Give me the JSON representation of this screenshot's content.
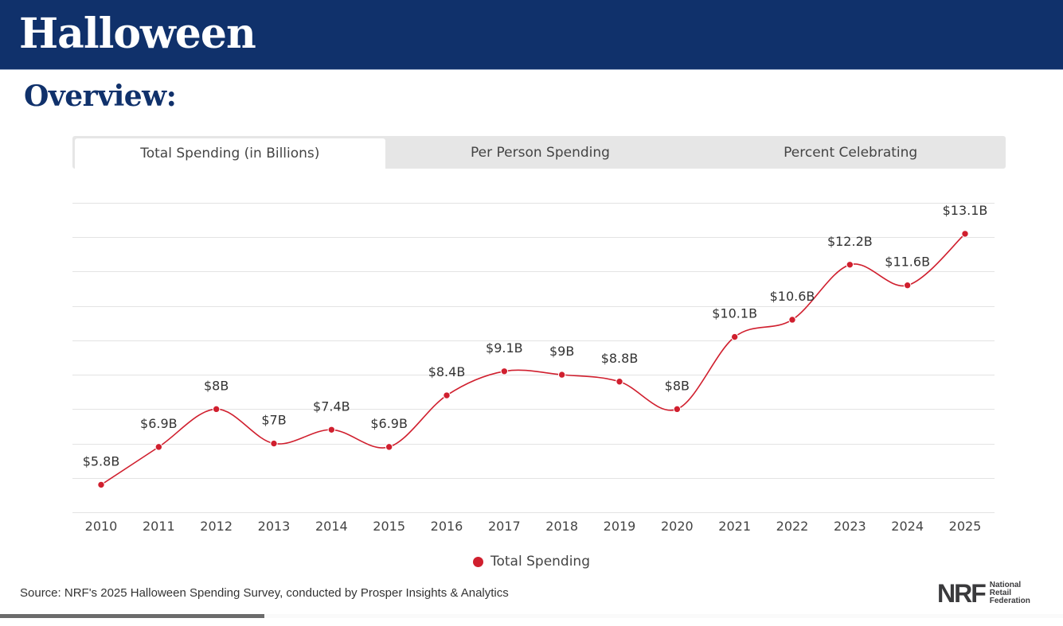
{
  "header": {
    "title": "Halloween"
  },
  "subtitle": "Overview:",
  "tabs": [
    {
      "label": "Total Spending (in Billions)",
      "active": true
    },
    {
      "label": "Per Person Spending",
      "active": false
    },
    {
      "label": "Percent Celebrating",
      "active": false
    }
  ],
  "colors": {
    "brand": "#10316b",
    "series": "#d01f2e",
    "grid": "#e3e3e3"
  },
  "chart_data": {
    "type": "line",
    "title": "Total Spending (in Billions)",
    "xlabel": "",
    "ylabel": "",
    "categories": [
      "2010",
      "2011",
      "2012",
      "2013",
      "2014",
      "2015",
      "2016",
      "2017",
      "2018",
      "2019",
      "2020",
      "2021",
      "2022",
      "2023",
      "2024",
      "2025"
    ],
    "series": [
      {
        "name": "Total Spending",
        "values": [
          5.8,
          6.9,
          8.0,
          7.0,
          7.4,
          6.9,
          8.4,
          9.1,
          9.0,
          8.8,
          8.0,
          10.1,
          10.6,
          12.2,
          11.6,
          13.1
        ],
        "labels": [
          "$5.8B",
          "$6.9B",
          "$8B",
          "$7B",
          "$7.4B",
          "$6.9B",
          "$8.4B",
          "$9.1B",
          "$9B",
          "$8.8B",
          "$8B",
          "$10.1B",
          "$10.6B",
          "$12.2B",
          "$11.6B",
          "$13.1B"
        ]
      }
    ],
    "ylim": [
      5,
      14
    ],
    "ytick_step": 1,
    "ytick_labels_visible": false,
    "grid": true,
    "smooth": true,
    "legend": "bottom-center"
  },
  "legend": {
    "label": "Total Spending"
  },
  "footer": {
    "source": "Source: NRF's 2025 Halloween Spending Survey, conducted by Prosper Insights & Analytics",
    "logo_mark": "NRF",
    "logo_lines": [
      "National",
      "Retail",
      "Federation"
    ]
  }
}
